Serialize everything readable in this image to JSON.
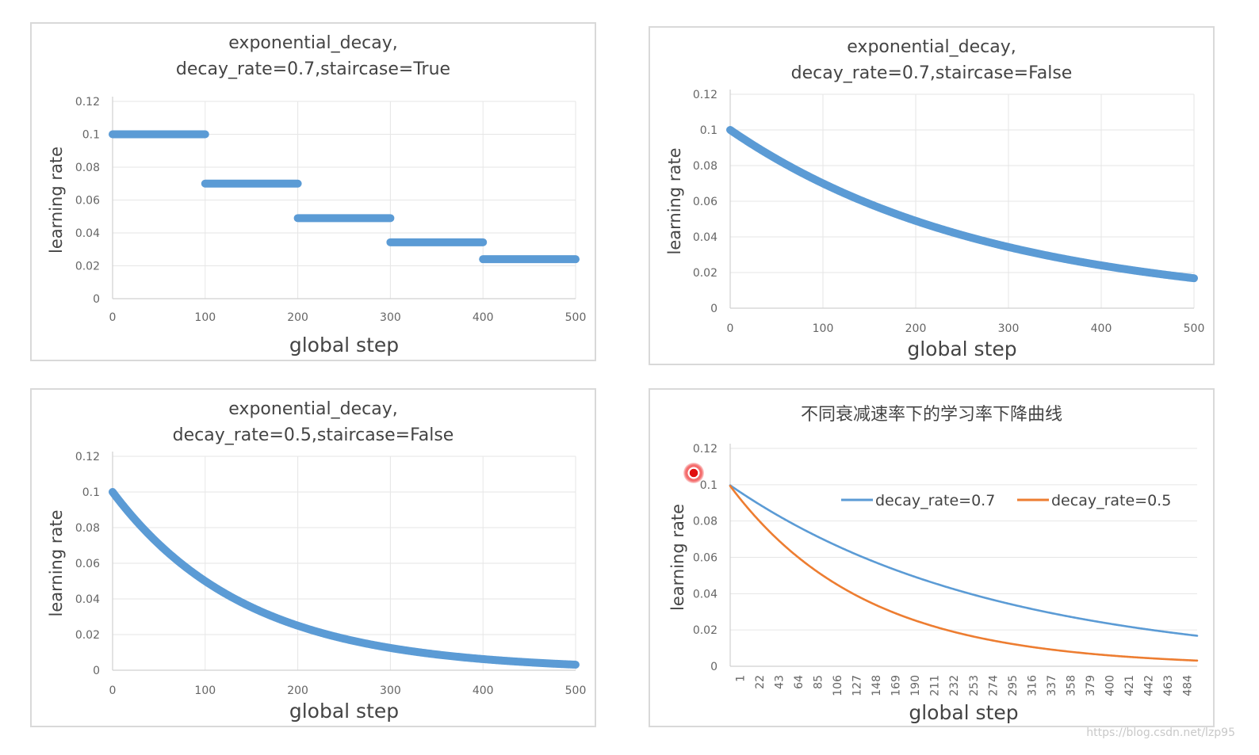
{
  "watermark": "https://blog.csdn.net/lzp95",
  "colors": {
    "series1": "#5b9bd5",
    "series2": "#ed7d31"
  },
  "chart_data": [
    {
      "type": "scatter",
      "title": [
        "exponential_decay,",
        "decay_rate=0.7,staircase=True"
      ],
      "xlabel": "global  step",
      "ylabel": "learning  rate",
      "xlim": [
        0,
        500
      ],
      "ylim": [
        0,
        0.12
      ],
      "xticks": [
        "0",
        "100",
        "200",
        "300",
        "400",
        "500"
      ],
      "yticks": [
        "0",
        "0.02",
        "0.04",
        "0.06",
        "0.08",
        "0.1",
        "0.12"
      ],
      "grid": true,
      "series": [
        {
          "function": "exponential_decay",
          "initial_rate": 0.1,
          "decay_rate": 0.7,
          "decay_steps": 100,
          "staircase": true,
          "x_range": [
            0,
            500
          ],
          "color": "#5b9bd5"
        }
      ]
    },
    {
      "type": "scatter",
      "title": [
        "exponential_decay,",
        "decay_rate=0.7,staircase=False"
      ],
      "xlabel": "global  step",
      "ylabel": "learning  rate",
      "xlim": [
        0,
        500
      ],
      "ylim": [
        0,
        0.12
      ],
      "xticks": [
        "0",
        "100",
        "200",
        "300",
        "400",
        "500"
      ],
      "yticks": [
        "0",
        "0.02",
        "0.04",
        "0.06",
        "0.08",
        "0.1",
        "0.12"
      ],
      "grid": true,
      "series": [
        {
          "function": "exponential_decay",
          "initial_rate": 0.1,
          "decay_rate": 0.7,
          "decay_steps": 100,
          "staircase": false,
          "x_range": [
            0,
            500
          ],
          "color": "#5b9bd5"
        }
      ]
    },
    {
      "type": "scatter",
      "title": [
        "exponential_decay,",
        "decay_rate=0.5,staircase=False"
      ],
      "xlabel": "global  step",
      "ylabel": "learning  rate",
      "xlim": [
        0,
        500
      ],
      "ylim": [
        0,
        0.12
      ],
      "xticks": [
        "0",
        "100",
        "200",
        "300",
        "400",
        "500"
      ],
      "yticks": [
        "0",
        "0.02",
        "0.04",
        "0.06",
        "0.08",
        "0.1",
        "0.12"
      ],
      "grid": true,
      "series": [
        {
          "function": "exponential_decay",
          "initial_rate": 0.1,
          "decay_rate": 0.5,
          "decay_steps": 100,
          "staircase": false,
          "x_range": [
            0,
            500
          ],
          "color": "#5b9bd5"
        }
      ]
    },
    {
      "type": "line",
      "title": [
        "不同衰减速率下的学习率下降曲线"
      ],
      "xlabel": "global  step",
      "ylabel": "learning  rate",
      "xlim": [
        1,
        500
      ],
      "ylim": [
        0,
        0.12
      ],
      "xticks": [
        "1",
        "22",
        "43",
        "64",
        "85",
        "106",
        "127",
        "148",
        "169",
        "190",
        "211",
        "232",
        "253",
        "274",
        "295",
        "316",
        "337",
        "358",
        "379",
        "400",
        "421",
        "442",
        "463",
        "484"
      ],
      "yticks": [
        "0",
        "0.02",
        "0.04",
        "0.06",
        "0.08",
        "0.1",
        "0.12"
      ],
      "grid": true,
      "legend": "inside-top-right",
      "series": [
        {
          "name": "decay_rate=0.7",
          "function": "exponential_decay",
          "initial_rate": 0.1,
          "decay_rate": 0.7,
          "decay_steps": 100,
          "staircase": false,
          "x_range": [
            1,
            500
          ],
          "color": "#5b9bd5"
        },
        {
          "name": "decay_rate=0.5",
          "function": "exponential_decay",
          "initial_rate": 0.1,
          "decay_rate": 0.5,
          "decay_steps": 100,
          "staircase": false,
          "x_range": [
            1,
            500
          ],
          "color": "#ed7d31"
        }
      ]
    }
  ]
}
